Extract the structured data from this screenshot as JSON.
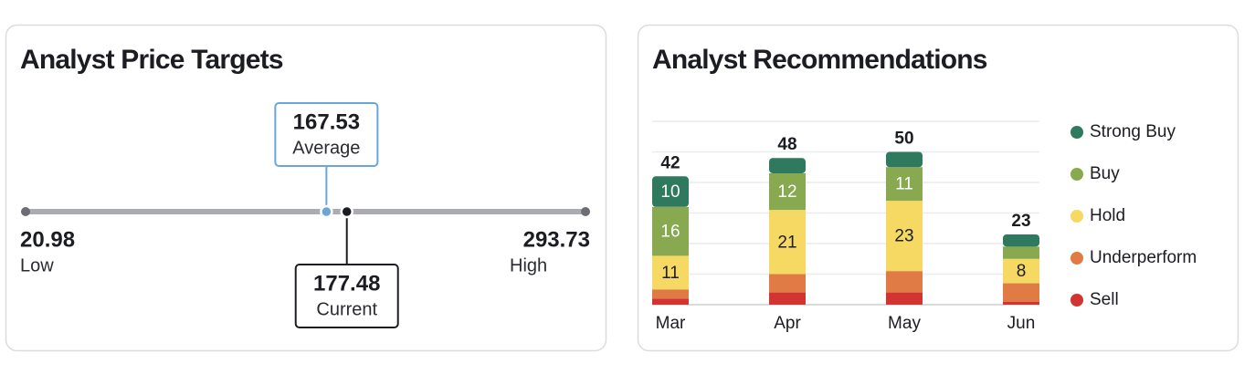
{
  "price_targets": {
    "title": "Analyst Price Targets",
    "low": {
      "value": 20.98,
      "label": "Low"
    },
    "high": {
      "value": 293.73,
      "label": "High"
    },
    "average": {
      "value": 167.53,
      "label": "Average"
    },
    "current": {
      "value": 177.48,
      "label": "Current"
    }
  },
  "chart_data": {
    "type": "stacked_bar",
    "title": "Analyst Recommendations",
    "categories": [
      "Mar",
      "Apr",
      "May",
      "Jun"
    ],
    "series": [
      {
        "name": "Strong Buy",
        "color": "#2f7a5e",
        "values": [
          10,
          5,
          5,
          4
        ]
      },
      {
        "name": "Buy",
        "color": "#88a94f",
        "values": [
          16,
          12,
          11,
          4
        ]
      },
      {
        "name": "Hold",
        "color": "#f6d963",
        "values": [
          11,
          21,
          23,
          8
        ]
      },
      {
        "name": "Underperform",
        "color": "#e07b45",
        "values": [
          3,
          6,
          7,
          6
        ]
      },
      {
        "name": "Sell",
        "color": "#d23431",
        "values": [
          2,
          4,
          4,
          1
        ]
      }
    ],
    "totals": [
      42,
      48,
      50,
      23
    ],
    "ylim": [
      0,
      60
    ],
    "yticks": [
      0,
      10,
      20,
      30,
      40,
      50,
      60
    ],
    "grid": true,
    "legend": "right"
  }
}
